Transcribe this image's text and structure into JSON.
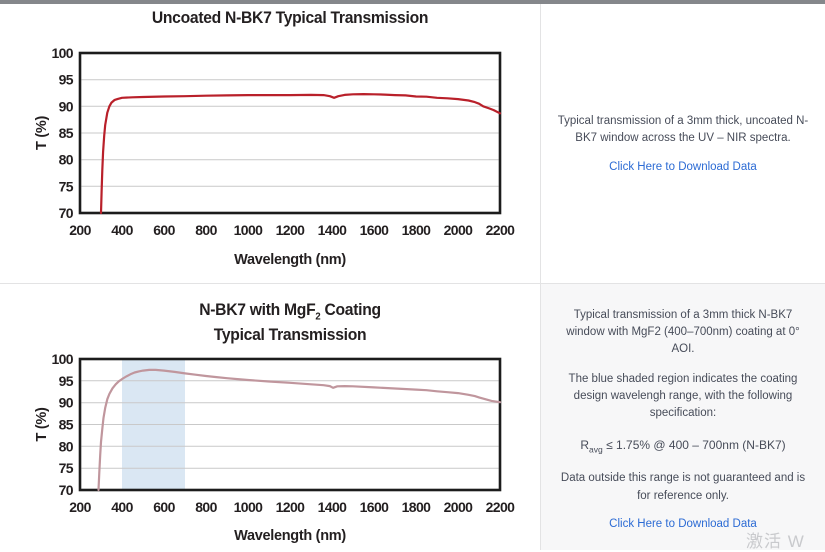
{
  "chart_data": [
    {
      "type": "line",
      "title": "Uncoated N-BK7 Typical Transmission",
      "xlabel": "Wavelength (nm)",
      "ylabel": "T (%)",
      "xlim": [
        200,
        2200
      ],
      "ylim": [
        70,
        100
      ],
      "xticks": [
        200,
        400,
        600,
        800,
        1000,
        1200,
        1400,
        1600,
        1800,
        2000,
        2200
      ],
      "yticks": [
        70,
        75,
        80,
        85,
        90,
        95,
        100
      ],
      "grid": "horizontal",
      "legend": "none",
      "line_color": "#b9202a",
      "series": [
        {
          "name": "Uncoated N-BK7 transmission",
          "points": [
            [
              300,
              70
            ],
            [
              303,
              74
            ],
            [
              306,
              78
            ],
            [
              310,
              81.5
            ],
            [
              315,
              84.5
            ],
            [
              320,
              86.5
            ],
            [
              330,
              88.8
            ],
            [
              340,
              90
            ],
            [
              350,
              90.7
            ],
            [
              365,
              91.2
            ],
            [
              380,
              91.4
            ],
            [
              400,
              91.6
            ],
            [
              450,
              91.7
            ],
            [
              500,
              91.75
            ],
            [
              600,
              91.85
            ],
            [
              700,
              91.9
            ],
            [
              800,
              92
            ],
            [
              900,
              92.05
            ],
            [
              1000,
              92.1
            ],
            [
              1100,
              92.1
            ],
            [
              1200,
              92.1
            ],
            [
              1300,
              92.15
            ],
            [
              1360,
              92.1
            ],
            [
              1390,
              91.9
            ],
            [
              1410,
              91.6
            ],
            [
              1430,
              91.9
            ],
            [
              1460,
              92.15
            ],
            [
              1500,
              92.25
            ],
            [
              1550,
              92.3
            ],
            [
              1600,
              92.25
            ],
            [
              1650,
              92.2
            ],
            [
              1700,
              92.1
            ],
            [
              1750,
              92.05
            ],
            [
              1800,
              91.85
            ],
            [
              1850,
              91.8
            ],
            [
              1900,
              91.6
            ],
            [
              1950,
              91.5
            ],
            [
              2000,
              91.35
            ],
            [
              2050,
              91.1
            ],
            [
              2080,
              90.8
            ],
            [
              2100,
              90.5
            ],
            [
              2120,
              90
            ],
            [
              2150,
              89.6
            ],
            [
              2170,
              89.3
            ],
            [
              2200,
              88.7
            ]
          ]
        }
      ]
    },
    {
      "type": "line",
      "title_line1_pre": "N-BK7 with MgF",
      "title_line1_sub": "2",
      "title_line1_post": " Coating",
      "title_line2": "Typical Transmission",
      "xlabel": "Wavelength (nm)",
      "ylabel": "T (%)",
      "xlim": [
        200,
        2200
      ],
      "ylim": [
        70,
        100
      ],
      "xticks": [
        200,
        400,
        600,
        800,
        1000,
        1200,
        1400,
        1600,
        1800,
        2000,
        2200
      ],
      "yticks": [
        70,
        75,
        80,
        85,
        90,
        95,
        100
      ],
      "grid": "horizontal",
      "legend": "none",
      "line_color": "#c0969d",
      "band": {
        "range": [
          400,
          700
        ],
        "color": "#dae7f3",
        "label": "coating design wavelength range"
      },
      "series": [
        {
          "name": "N-BK7 with MgF2 coating transmission",
          "points": [
            [
              288,
              70
            ],
            [
              292,
              74
            ],
            [
              296,
              78
            ],
            [
              300,
              81
            ],
            [
              306,
              84
            ],
            [
              312,
              86.5
            ],
            [
              320,
              88.8
            ],
            [
              330,
              90.8
            ],
            [
              340,
              92
            ],
            [
              355,
              93.3
            ],
            [
              370,
              94.2
            ],
            [
              385,
              94.9
            ],
            [
              400,
              95.4
            ],
            [
              420,
              96
            ],
            [
              440,
              96.5
            ],
            [
              460,
              96.9
            ],
            [
              480,
              97.15
            ],
            [
              500,
              97.35
            ],
            [
              530,
              97.5
            ],
            [
              560,
              97.5
            ],
            [
              600,
              97.35
            ],
            [
              650,
              97.05
            ],
            [
              700,
              96.7
            ],
            [
              750,
              96.4
            ],
            [
              800,
              96.1
            ],
            [
              850,
              95.85
            ],
            [
              900,
              95.6
            ],
            [
              950,
              95.4
            ],
            [
              1000,
              95.2
            ],
            [
              1100,
              94.85
            ],
            [
              1200,
              94.55
            ],
            [
              1300,
              94.2
            ],
            [
              1360,
              94
            ],
            [
              1390,
              93.8
            ],
            [
              1405,
              93.4
            ],
            [
              1425,
              93.75
            ],
            [
              1460,
              93.8
            ],
            [
              1500,
              93.75
            ],
            [
              1600,
              93.5
            ],
            [
              1700,
              93.25
            ],
            [
              1800,
              93
            ],
            [
              1850,
              92.85
            ],
            [
              1900,
              92.6
            ],
            [
              1950,
              92.4
            ],
            [
              2000,
              92.2
            ],
            [
              2050,
              91.8
            ],
            [
              2080,
              91.5
            ],
            [
              2100,
              91.2
            ],
            [
              2130,
              90.8
            ],
            [
              2160,
              90.4
            ],
            [
              2200,
              90.1
            ]
          ]
        }
      ]
    }
  ],
  "side_panels": {
    "top": {
      "description": "Typical transmission of a 3mm thick, uncoated N-BK7 window across the UV – NIR spectra.",
      "link_label": "Click Here to Download Data"
    },
    "bottom": {
      "p1": "Typical transmission of a 3mm thick N-BK7 window with MgF2 (400–700nm) coating at 0° AOI.",
      "p2": "The blue shaded region indicates the coating design wavelengh range, with the following specification:",
      "spec_pre": "R",
      "spec_sub": "avg",
      "spec_post": " ≤ 1.75% @ 400 – 700nm (N-BK7)",
      "p3": "Data outside this range is not guaranteed and is for reference only.",
      "link_label": "Click Here to Download Data"
    }
  },
  "watermark": "激活 W",
  "colors": {
    "uncoated_line": "#b9202a",
    "coated_line": "#c0969d",
    "band_fill": "#dae7f3",
    "link": "#2c6bd4",
    "chart_text": "#231f20",
    "side_text": "#474c59",
    "gridline": "#c9c9c9",
    "divider": "#e3e3e4",
    "bottom_right_bg": "#f7f7f8",
    "top_bar": "#85878b"
  }
}
